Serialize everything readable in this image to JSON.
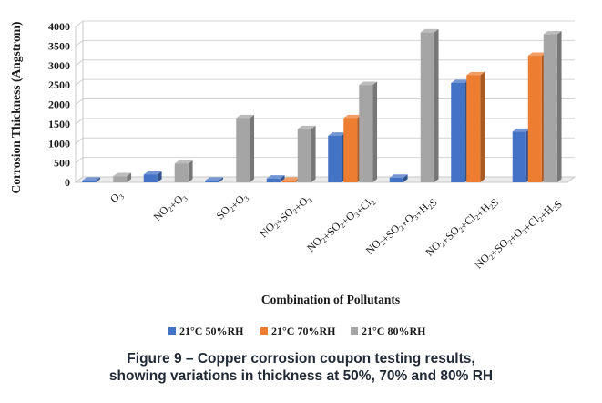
{
  "chart_data": {
    "type": "bar",
    "categories": [
      "O3",
      "NO2+O3",
      "SO2+O3",
      "NO2+SO2+O3",
      "NO2+SO2+O3+Cl2",
      "NO2+SO2+O3+H2S",
      "NO2+SO2+Cl2+H2S",
      "NO2+SO2+O3+Cl2+H2S"
    ],
    "series": [
      {
        "name": "21°C 50%RH",
        "color": "#4472c4",
        "values": [
          10,
          200,
          10,
          100,
          1200,
          120,
          2550,
          1300
        ]
      },
      {
        "name": "21°C 70%RH",
        "color": "#ed7d31",
        "values": [
          0,
          0,
          0,
          20,
          1650,
          0,
          2750,
          3250
        ]
      },
      {
        "name": "21°C 80%RH",
        "color": "#a5a5a5",
        "values": [
          160,
          480,
          1650,
          1370,
          2500,
          3850,
          0,
          3800
        ]
      }
    ],
    "yticks": [
      "0",
      "500",
      "1000",
      "1500",
      "2000",
      "2500",
      "3000",
      "3500",
      "4000"
    ],
    "ylim": [
      0,
      4000
    ],
    "ylabel": "Corrosion Thickness (Angstrom)",
    "xlabel": "Combination of Pollutants",
    "grid": true,
    "legend": "bottom"
  },
  "caption": {
    "line1": "Figure 9 – Copper corrosion coupon testing results,",
    "line2": "showing variations in thickness at 50%, 70% and 80% RH"
  }
}
